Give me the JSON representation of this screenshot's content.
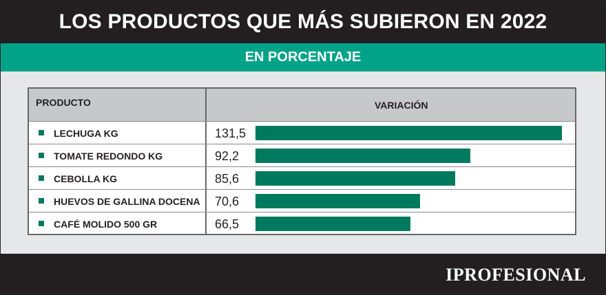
{
  "header": {
    "title": "LOS PRODUCTOS QUE MÁS SUBIERON EN 2022"
  },
  "subheader": {
    "title": "EN PORCENTAJE"
  },
  "table": {
    "col_product": "PRODUCTO",
    "col_variation": "VARIACIÓN"
  },
  "chart_data": {
    "type": "bar",
    "orientation": "horizontal",
    "categories": [
      "LECHUGA KG",
      "TOMATE REDONDO KG",
      "CEBOLLA KG",
      "HUEVOS DE GALLINA DOCENA",
      "CAFÉ MOLIDO 500 GR"
    ],
    "values": [
      131.5,
      92.2,
      85.6,
      70.6,
      66.5
    ],
    "value_labels": [
      "131,5",
      "92,2",
      "85,6",
      "70,6",
      "66,5"
    ],
    "title": "LOS PRODUCTOS QUE MÁS SUBIERON EN 2022",
    "subtitle": "EN PORCENTAJE",
    "xlim": [
      0,
      131.5
    ],
    "grid": false,
    "bar_color": "#007a5e"
  },
  "footer": {
    "logo": "IPROFESIONAL"
  },
  "colors": {
    "header_bg": "#231f20",
    "accent": "#00a388",
    "bar": "#007a5e",
    "panel_bg": "#e6e7e8"
  }
}
